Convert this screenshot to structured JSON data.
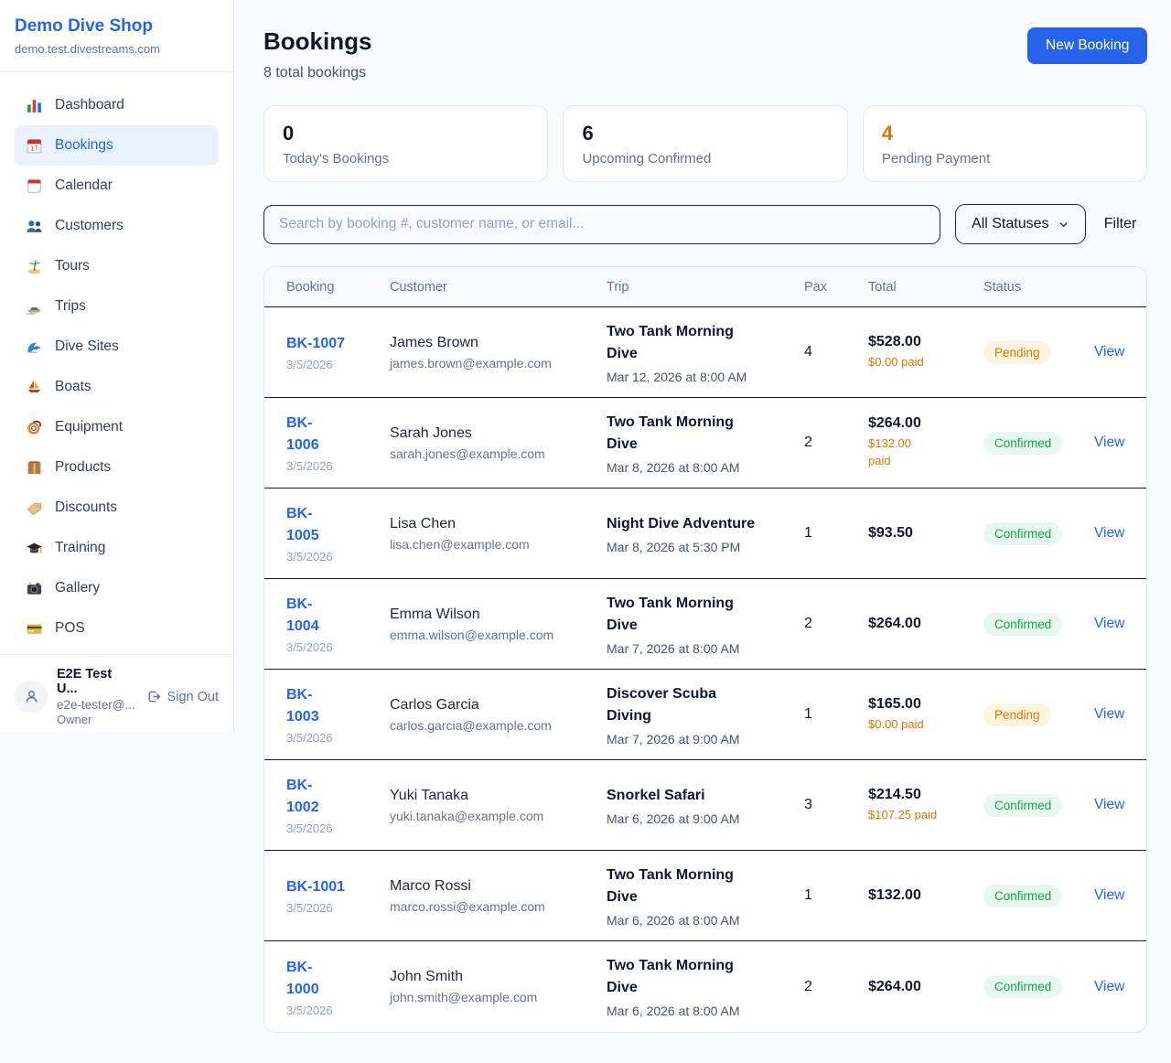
{
  "sidebar": {
    "shop_name": "Demo Dive Shop",
    "domain": "demo.test.divestreams.com",
    "items": [
      {
        "name": "dashboard",
        "label": "Dashboard",
        "icon": "bar-chart",
        "active": false
      },
      {
        "name": "bookings",
        "label": "Bookings",
        "icon": "calendar-17",
        "active": true
      },
      {
        "name": "calendar",
        "label": "Calendar",
        "icon": "tear-off-calendar",
        "active": false
      },
      {
        "name": "customers",
        "label": "Customers",
        "icon": "people",
        "active": false
      },
      {
        "name": "tours",
        "label": "Tours",
        "icon": "island",
        "active": false
      },
      {
        "name": "trips",
        "label": "Trips",
        "icon": "speedboat",
        "active": false
      },
      {
        "name": "dive-sites",
        "label": "Dive Sites",
        "icon": "wave",
        "active": false
      },
      {
        "name": "boats",
        "label": "Boats",
        "icon": "sailboat",
        "active": false
      },
      {
        "name": "equipment",
        "label": "Equipment",
        "icon": "diving-mask",
        "active": false
      },
      {
        "name": "products",
        "label": "Products",
        "icon": "package",
        "active": false
      },
      {
        "name": "discounts",
        "label": "Discounts",
        "icon": "tag",
        "active": false
      },
      {
        "name": "training",
        "label": "Training",
        "icon": "graduation-cap",
        "active": false
      },
      {
        "name": "gallery",
        "label": "Gallery",
        "icon": "camera",
        "active": false
      },
      {
        "name": "pos",
        "label": "POS",
        "icon": "credit-card",
        "active": false
      }
    ],
    "user": {
      "name": "E2E Test U...",
      "email": "e2e-tester@...",
      "role": "Owner",
      "sign_out_label": "Sign Out"
    }
  },
  "header": {
    "title": "Bookings",
    "subtitle": "8 total bookings",
    "new_booking_label": "New Booking"
  },
  "stats": [
    {
      "value": "0",
      "label": "Today's Bookings",
      "accent": "dark"
    },
    {
      "value": "6",
      "label": "Upcoming Confirmed",
      "accent": "dark"
    },
    {
      "value": "4",
      "label": "Pending Payment",
      "accent": "orange"
    }
  ],
  "controls": {
    "search_placeholder": "Search by booking #, customer name, or email...",
    "status_filter_value": "All Statuses",
    "filter_label": "Filter"
  },
  "table": {
    "columns": [
      "Booking",
      "Customer",
      "Trip",
      "Pax",
      "Total",
      "Status"
    ],
    "view_label": "View",
    "rows": [
      {
        "id": "BK-1007",
        "date": "3/5/2026",
        "customer": "James Brown",
        "email": "james.brown@example.com",
        "trip": "Two Tank Morning\nDive",
        "trip_datetime": "Mar 12, 2026 at 8:00 AM",
        "pax": "4",
        "total": "$528.00",
        "paid": "$0.00 paid",
        "status": "Pending"
      },
      {
        "id": "BK-\n1006",
        "date": "3/5/2026",
        "customer": "Sarah Jones",
        "email": "sarah.jones@example.com",
        "trip": "Two Tank Morning\nDive",
        "trip_datetime": "Mar 8, 2026 at 8:00 AM",
        "pax": "2",
        "total": "$264.00",
        "paid": "$132.00\npaid",
        "status": "Confirmed"
      },
      {
        "id": "BK-\n1005",
        "date": "3/5/2026",
        "customer": "Lisa Chen",
        "email": "lisa.chen@example.com",
        "trip": "Night Dive Adventure",
        "trip_datetime": "Mar 8, 2026 at 5:30 PM",
        "pax": "1",
        "total": "$93.50",
        "paid": "",
        "status": "Confirmed"
      },
      {
        "id": "BK-\n1004",
        "date": "3/5/2026",
        "customer": "Emma Wilson",
        "email": "emma.wilson@example.com",
        "trip": "Two Tank Morning\nDive",
        "trip_datetime": "Mar 7, 2026 at 8:00 AM",
        "pax": "2",
        "total": "$264.00",
        "paid": "",
        "status": "Confirmed"
      },
      {
        "id": "BK-\n1003",
        "date": "3/5/2026",
        "customer": "Carlos Garcia",
        "email": "carlos.garcia@example.com",
        "trip": "Discover Scuba\nDiving",
        "trip_datetime": "Mar 7, 2026 at 9:00 AM",
        "pax": "1",
        "total": "$165.00",
        "paid": "$0.00 paid",
        "status": "Pending"
      },
      {
        "id": "BK-\n1002",
        "date": "3/5/2026",
        "customer": "Yuki Tanaka",
        "email": "yuki.tanaka@example.com",
        "trip": "Snorkel Safari",
        "trip_datetime": "Mar 6, 2026 at 9:00 AM",
        "pax": "3",
        "total": "$214.50",
        "paid": "$107.25 paid",
        "status": "Confirmed"
      },
      {
        "id": "BK-1001",
        "date": "3/5/2026",
        "customer": "Marco Rossi",
        "email": "marco.rossi@example.com",
        "trip": "Two Tank Morning\nDive",
        "trip_datetime": "Mar 6, 2026 at 8:00 AM",
        "pax": "1",
        "total": "$132.00",
        "paid": "",
        "status": "Confirmed"
      },
      {
        "id": "BK-\n1000",
        "date": "3/5/2026",
        "customer": "John Smith",
        "email": "john.smith@example.com",
        "trip": "Two Tank Morning\nDive",
        "trip_datetime": "Mar 6, 2026 at 8:00 AM",
        "pax": "2",
        "total": "$264.00",
        "paid": "",
        "status": "Confirmed"
      }
    ]
  },
  "colors": {
    "accent_blue": "#2563eb",
    "pending_text": "#d97706",
    "pending_bg": "#fcf4dd",
    "confirmed_text": "#16a34a",
    "confirmed_bg": "#e7f8ee",
    "paid_orange": "#d97706",
    "stat_orange": "#d97706"
  }
}
